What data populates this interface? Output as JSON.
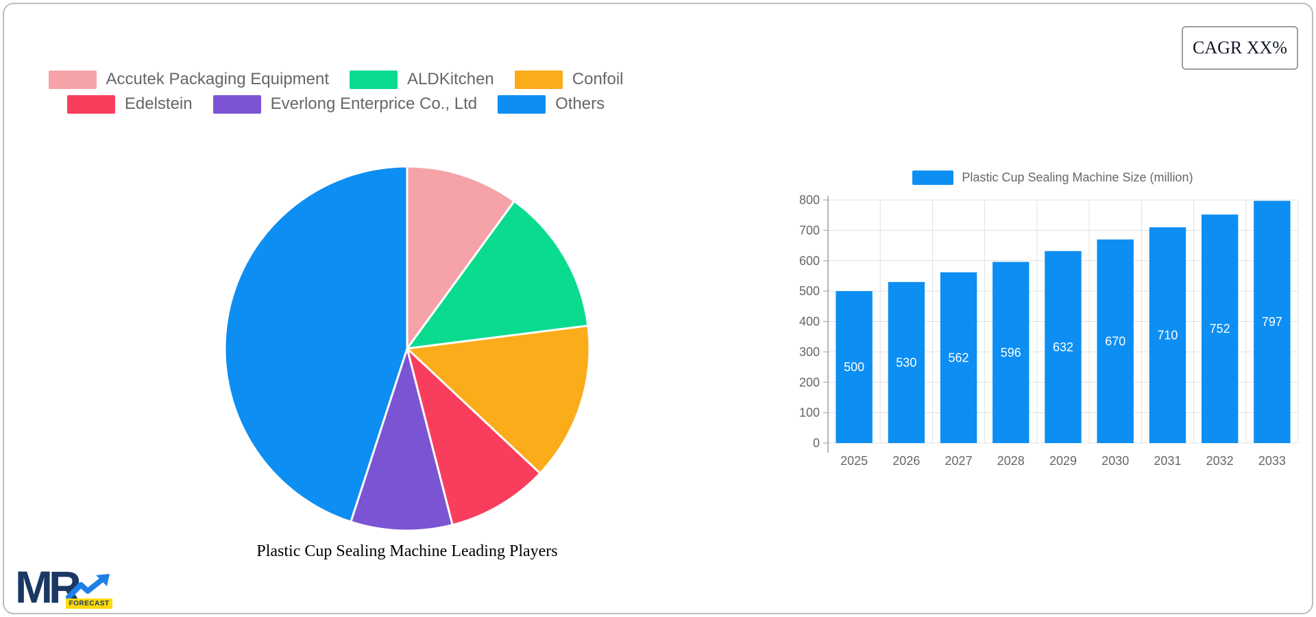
{
  "cagr": {
    "label": "CAGR XX%"
  },
  "logo": {
    "mr": "MR",
    "forecast": "FORECAST",
    "navy": "#1B3864",
    "blue": "#1E7FE8",
    "yellow": "#FFD908"
  },
  "colors": {
    "grid": "#E0E0E0",
    "axis": "#9E9E9E",
    "tick": "#BDBDBD",
    "tick_text": "#666666",
    "legend_text": "#666666",
    "bar": "#0D8EF2",
    "bar_value_text": "#FFFFFF",
    "pie_stroke": "#FFFFFF"
  },
  "chart_data": [
    {
      "type": "pie",
      "title": "Plastic Cup Sealing Machine Leading Players",
      "legend_position": "top",
      "start_angle_deg": -90,
      "direction": "clockwise",
      "labels": [
        "Accutek Packaging Equipment",
        "ALDKitchen",
        "Confoil",
        "Edelstein",
        "Everlong Enterprice Co., Ltd",
        "Others"
      ],
      "values_pct": [
        10,
        13,
        14,
        9,
        9,
        45
      ],
      "colors": [
        "#F5A3A9",
        "#0BDB8F",
        "#FBAC1B",
        "#F93E5D",
        "#7B54D3",
        "#0D8EF2"
      ]
    },
    {
      "type": "bar",
      "legend": "Plastic Cup Sealing Machine Size (million)",
      "categories": [
        "2025",
        "2026",
        "2027",
        "2028",
        "2029",
        "2030",
        "2031",
        "2032",
        "2033"
      ],
      "values": [
        500,
        530,
        562,
        596,
        632,
        670,
        710,
        752,
        797
      ],
      "ylim": [
        0,
        800
      ],
      "y_tick_step": 100,
      "y_tick_labels": [
        "0",
        "100",
        "200",
        "300",
        "400",
        "500",
        "600",
        "700",
        "800"
      ],
      "grid": true,
      "legend_position": "top",
      "bar_color": "#0D8EF2",
      "value_label_color": "#FFFFFF"
    }
  ]
}
